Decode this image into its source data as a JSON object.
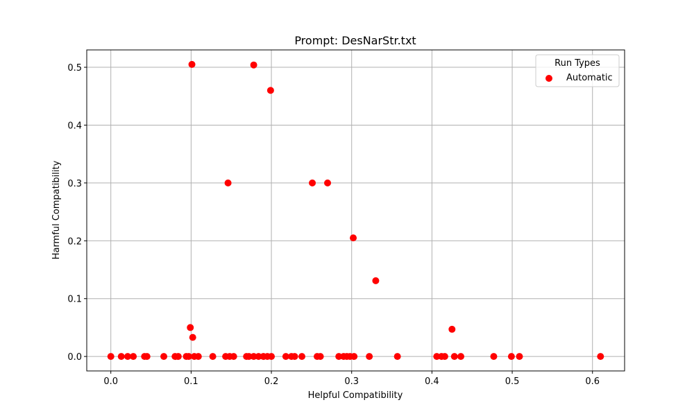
{
  "chart_data": {
    "type": "scatter",
    "title": "Prompt: DesNarStr.txt",
    "xlabel": "Helpful Compatibility",
    "ylabel": "Harmful Compatibility",
    "xlim": [
      -0.03,
      0.64
    ],
    "ylim": [
      -0.025,
      0.53
    ],
    "xticks": [
      0.0,
      0.1,
      0.2,
      0.3,
      0.4,
      0.5,
      0.6
    ],
    "xtick_labels": [
      "0.0",
      "0.1",
      "0.2",
      "0.3",
      "0.4",
      "0.5",
      "0.6"
    ],
    "yticks": [
      0.0,
      0.1,
      0.2,
      0.3,
      0.4,
      0.5
    ],
    "ytick_labels": [
      "0.0",
      "0.1",
      "0.2",
      "0.3",
      "0.4",
      "0.5"
    ],
    "grid": true,
    "legend": {
      "title": "Run Types",
      "placement": "top-right"
    },
    "series": [
      {
        "name": "Automatic",
        "color": "#ff0000",
        "points": [
          [
            0.101,
            0.505
          ],
          [
            0.178,
            0.504
          ],
          [
            0.199,
            0.46
          ],
          [
            0.146,
            0.3
          ],
          [
            0.251,
            0.3
          ],
          [
            0.27,
            0.3
          ],
          [
            0.302,
            0.205
          ],
          [
            0.33,
            0.131
          ],
          [
            0.099,
            0.05
          ],
          [
            0.102,
            0.033
          ],
          [
            0.425,
            0.047
          ],
          [
            0.0,
            0.0
          ],
          [
            0.013,
            0.0
          ],
          [
            0.021,
            0.0
          ],
          [
            0.028,
            0.0
          ],
          [
            0.042,
            0.0
          ],
          [
            0.045,
            0.0
          ],
          [
            0.066,
            0.0
          ],
          [
            0.08,
            0.0
          ],
          [
            0.084,
            0.0
          ],
          [
            0.094,
            0.0
          ],
          [
            0.097,
            0.0
          ],
          [
            0.104,
            0.0
          ],
          [
            0.109,
            0.0
          ],
          [
            0.127,
            0.0
          ],
          [
            0.143,
            0.0
          ],
          [
            0.148,
            0.0
          ],
          [
            0.153,
            0.0
          ],
          [
            0.169,
            0.0
          ],
          [
            0.172,
            0.0
          ],
          [
            0.178,
            0.0
          ],
          [
            0.184,
            0.0
          ],
          [
            0.19,
            0.0
          ],
          [
            0.195,
            0.0
          ],
          [
            0.2,
            0.0
          ],
          [
            0.218,
            0.0
          ],
          [
            0.225,
            0.0
          ],
          [
            0.229,
            0.0
          ],
          [
            0.238,
            0.0
          ],
          [
            0.257,
            0.0
          ],
          [
            0.261,
            0.0
          ],
          [
            0.284,
            0.0
          ],
          [
            0.29,
            0.0
          ],
          [
            0.294,
            0.0
          ],
          [
            0.298,
            0.0
          ],
          [
            0.303,
            0.0
          ],
          [
            0.322,
            0.0
          ],
          [
            0.357,
            0.0
          ],
          [
            0.406,
            0.0
          ],
          [
            0.412,
            0.0
          ],
          [
            0.416,
            0.0
          ],
          [
            0.428,
            0.0
          ],
          [
            0.436,
            0.0
          ],
          [
            0.477,
            0.0
          ],
          [
            0.499,
            0.0
          ],
          [
            0.509,
            0.0
          ],
          [
            0.61,
            0.0
          ]
        ]
      }
    ]
  }
}
